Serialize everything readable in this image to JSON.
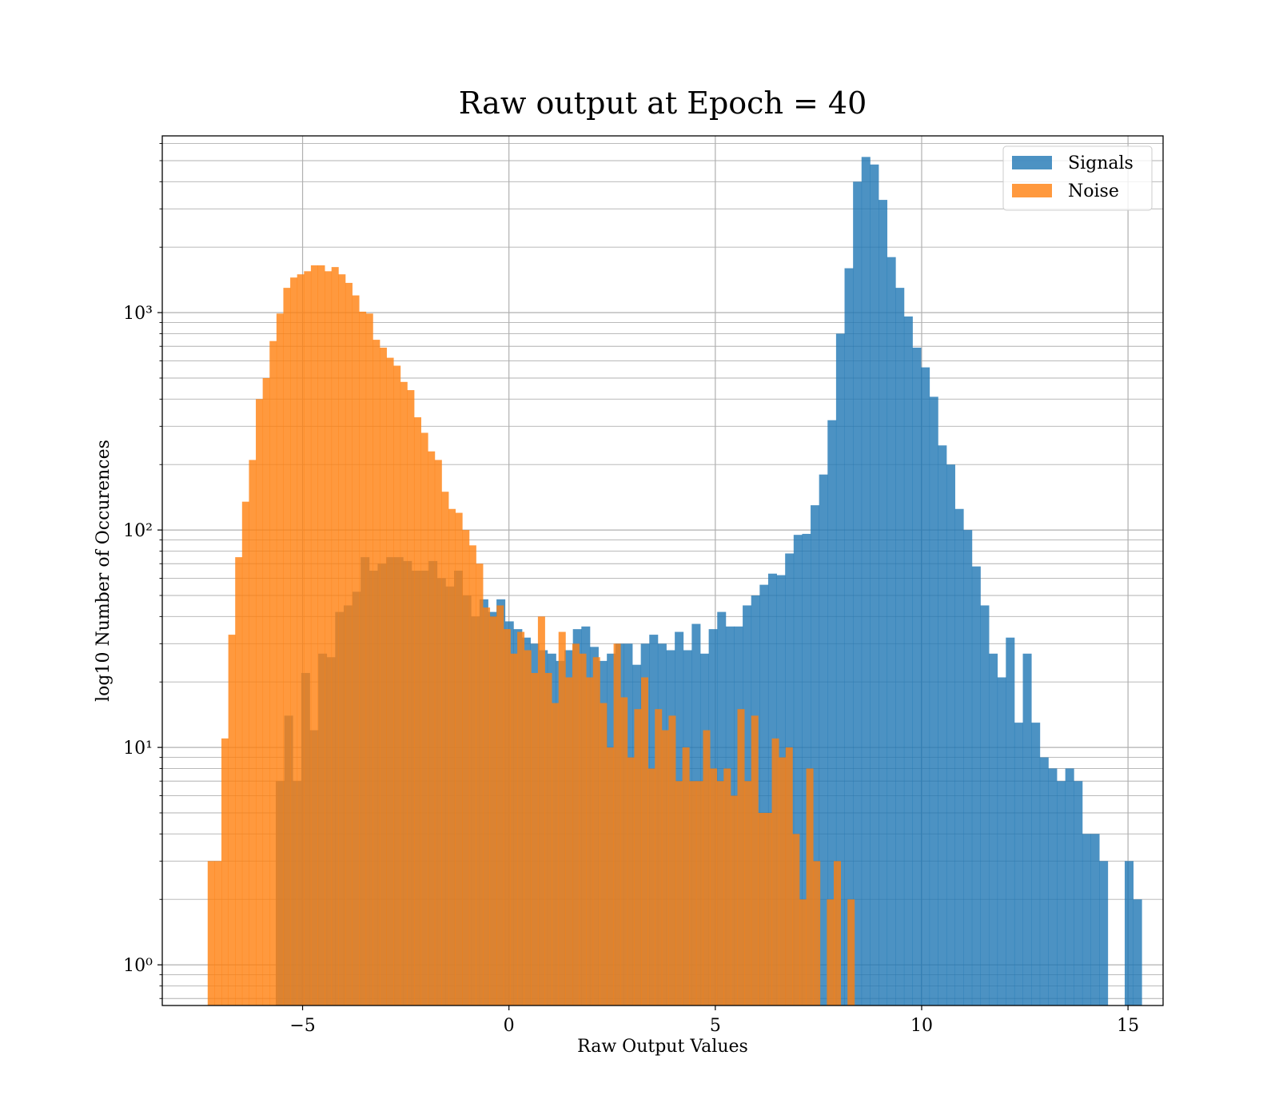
{
  "chart_data": {
    "type": "bar",
    "title": "Raw output at Epoch = 40",
    "xlabel": "Raw Output Values",
    "ylabel": "log10 Number of Occurences",
    "xlim": [
      -8.4,
      15.85
    ],
    "ylim": [
      0.65,
      6500
    ],
    "y_scale": "log",
    "grid": true,
    "legend_position": "top-right",
    "x_ticks": [
      -5,
      0,
      5,
      10,
      15
    ],
    "x_tick_labels": [
      "−5",
      "0",
      "5",
      "10",
      "15"
    ],
    "y_ticks": [
      1,
      10,
      100,
      1000
    ],
    "y_tick_labels": [
      "10⁰",
      "10¹",
      "10²",
      "10³"
    ],
    "colors": {
      "signals": "#4a90c2",
      "noise": "#ff9a3d",
      "grid": "#b0b0b0"
    },
    "series": [
      {
        "name": "Signals",
        "color": "#1f77b4",
        "opacity": 0.8,
        "bin_start": -5.65,
        "bin_width": 0.2057,
        "counts": [
          7,
          14,
          7,
          22,
          12,
          27,
          26,
          42,
          45,
          52,
          75,
          65,
          70,
          75,
          75,
          72,
          65,
          65,
          72,
          60,
          55,
          65,
          50,
          40,
          48,
          42,
          48,
          38,
          35,
          32,
          30,
          28,
          27,
          25,
          28,
          35,
          36,
          29,
          25,
          27,
          30,
          30,
          24,
          30,
          33,
          30,
          28,
          34,
          28,
          37,
          27,
          35,
          42,
          36,
          36,
          45,
          50,
          56,
          63,
          62,
          78,
          95,
          96,
          130,
          180,
          320,
          800,
          1600,
          4000,
          5200,
          4800,
          3300,
          1800,
          1300,
          960,
          690,
          560,
          410,
          245,
          200,
          125,
          100,
          68,
          45,
          27,
          21,
          32,
          13,
          27,
          13,
          9,
          8,
          7,
          8,
          7,
          4,
          4,
          3,
          0,
          0,
          3,
          2
        ]
      },
      {
        "name": "Noise",
        "color": "#ff7f0e",
        "opacity": 0.8,
        "bin_start": -7.3,
        "bin_width": 0.1667,
        "counts": [
          3,
          3,
          11,
          33,
          75,
          135,
          210,
          400,
          500,
          740,
          990,
          1300,
          1450,
          1500,
          1550,
          1650,
          1650,
          1550,
          1620,
          1500,
          1370,
          1200,
          1010,
          990,
          750,
          690,
          620,
          570,
          480,
          440,
          330,
          280,
          230,
          210,
          150,
          125,
          120,
          100,
          85,
          70,
          44,
          40,
          45,
          35,
          27,
          34,
          28,
          22,
          40,
          22,
          16,
          34,
          21,
          30,
          27,
          21,
          26,
          16,
          10,
          30,
          17,
          9,
          15,
          21,
          8,
          15,
          12,
          14,
          7,
          10,
          7,
          7,
          12,
          8,
          7,
          8,
          6,
          15,
          7,
          14,
          5,
          5,
          11,
          9,
          10,
          4,
          2,
          8,
          3,
          0,
          2,
          3,
          0,
          2
        ]
      }
    ]
  }
}
